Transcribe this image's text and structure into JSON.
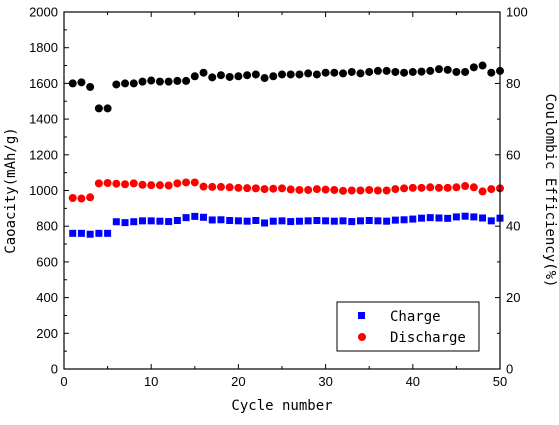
{
  "chart_data": {
    "type": "scatter",
    "title": "",
    "xlabel": "Cycle number",
    "ylabel": "Caoacity(mAh/g)",
    "ylabel_right": "Coulombic Efficiency(%)",
    "xlim": [
      0,
      50
    ],
    "ylim": [
      0,
      2000
    ],
    "ylim_right": [
      0,
      100
    ],
    "x_ticks": [
      "0",
      "10",
      "20",
      "30",
      "40",
      "50"
    ],
    "y_ticks": [
      "0",
      "200",
      "400",
      "600",
      "800",
      "1000",
      "1200",
      "1400",
      "1600",
      "1800",
      "2000"
    ],
    "y_right_ticks": [
      "0",
      "20",
      "40",
      "60",
      "80",
      "100"
    ],
    "grid": false,
    "legend_position": "bottom-right",
    "x": [
      1,
      2,
      3,
      4,
      5,
      6,
      7,
      8,
      9,
      10,
      11,
      12,
      13,
      14,
      15,
      16,
      17,
      18,
      19,
      20,
      21,
      22,
      23,
      24,
      25,
      26,
      27,
      28,
      29,
      30,
      31,
      32,
      33,
      34,
      35,
      36,
      37,
      38,
      39,
      40,
      41,
      42,
      43,
      44,
      45,
      46,
      47,
      48,
      49,
      50
    ],
    "series": [
      {
        "name": "Charge",
        "marker": "square",
        "color": "#0000ff",
        "axis": "left",
        "values": [
          760,
          760,
          755,
          760,
          760,
          825,
          820,
          825,
          830,
          830,
          828,
          826,
          832,
          848,
          855,
          850,
          835,
          836,
          832,
          830,
          828,
          832,
          818,
          828,
          830,
          826,
          828,
          830,
          832,
          830,
          828,
          830,
          826,
          830,
          832,
          830,
          828,
          834,
          836,
          840,
          845,
          848,
          846,
          844,
          852,
          856,
          852,
          846,
          830,
          845
        ]
      },
      {
        "name": "Discharge",
        "marker": "circle",
        "color": "#ff0000",
        "axis": "left",
        "values": [
          958,
          955,
          962,
          1040,
          1042,
          1038,
          1035,
          1040,
          1032,
          1030,
          1030,
          1028,
          1040,
          1045,
          1045,
          1022,
          1020,
          1020,
          1018,
          1015,
          1013,
          1012,
          1008,
          1010,
          1012,
          1006,
          1003,
          1003,
          1008,
          1005,
          1003,
          998,
          1000,
          1000,
          1003,
          1000,
          1000,
          1008,
          1012,
          1015,
          1015,
          1018,
          1015,
          1015,
          1018,
          1025,
          1018,
          995,
          1008,
          1012
        ]
      },
      {
        "name": "",
        "marker": "circle",
        "color": "#000000",
        "axis": "right",
        "values": [
          80,
          80.3,
          79,
          73,
          73,
          79.7,
          80,
          80,
          80.5,
          80.8,
          80.5,
          80.5,
          80.7,
          80.7,
          82,
          83,
          81.7,
          82.3,
          81.8,
          82,
          82.3,
          82.5,
          81.5,
          82,
          82.5,
          82.5,
          82.5,
          82.8,
          82.5,
          83,
          83,
          82.8,
          83.2,
          82.8,
          83.2,
          83.5,
          83.5,
          83.2,
          83,
          83.2,
          83.3,
          83.5,
          84,
          83.8,
          83.2,
          83.2,
          84.5,
          85,
          83,
          83.5
        ]
      }
    ]
  }
}
